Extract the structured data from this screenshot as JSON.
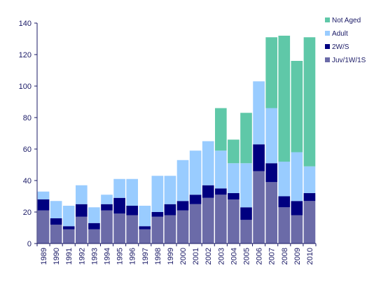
{
  "chart_data": {
    "type": "bar",
    "stacked": true,
    "categories": [
      "1989",
      "1990",
      "1991",
      "1992",
      "1993",
      "1994",
      "1995",
      "1996",
      "1997",
      "1998",
      "1999",
      "2000",
      "2001",
      "2002",
      "2003",
      "2004",
      "2005",
      "2006",
      "2007",
      "2008",
      "2009",
      "2010"
    ],
    "series": [
      {
        "name": "Juv/1W/1S",
        "color": "#6b6ba8",
        "values": [
          21,
          12,
          9,
          17,
          9,
          21,
          19,
          18,
          9,
          17,
          18,
          21,
          25,
          29,
          31,
          28,
          15,
          46,
          39,
          23,
          18,
          27
        ]
      },
      {
        "name": "2W/S",
        "color": "#000080",
        "values": [
          7,
          4,
          2,
          8,
          4,
          4,
          10,
          6,
          2,
          3,
          7,
          6,
          6,
          8,
          4,
          4,
          8,
          17,
          12,
          7,
          9,
          5
        ]
      },
      {
        "name": "Adult",
        "color": "#99ccff",
        "values": [
          5,
          11,
          13,
          12,
          10,
          6,
          12,
          17,
          13,
          23,
          18,
          26,
          28,
          28,
          24,
          19,
          28,
          40,
          35,
          22,
          31,
          17
        ]
      },
      {
        "name": "Not Aged",
        "color": "#5fc8a8",
        "values": [
          0,
          0,
          0,
          0,
          0,
          0,
          0,
          0,
          0,
          0,
          0,
          0,
          0,
          0,
          27,
          15,
          32,
          0,
          45,
          80,
          58,
          82
        ]
      }
    ],
    "title": "",
    "xlabel": "",
    "ylabel": "",
    "ylim": [
      0,
      140
    ],
    "yticks": [
      "0",
      "20",
      "40",
      "60",
      "80",
      "100",
      "120",
      "140"
    ],
    "grid": false,
    "legend_position": "top-right"
  }
}
